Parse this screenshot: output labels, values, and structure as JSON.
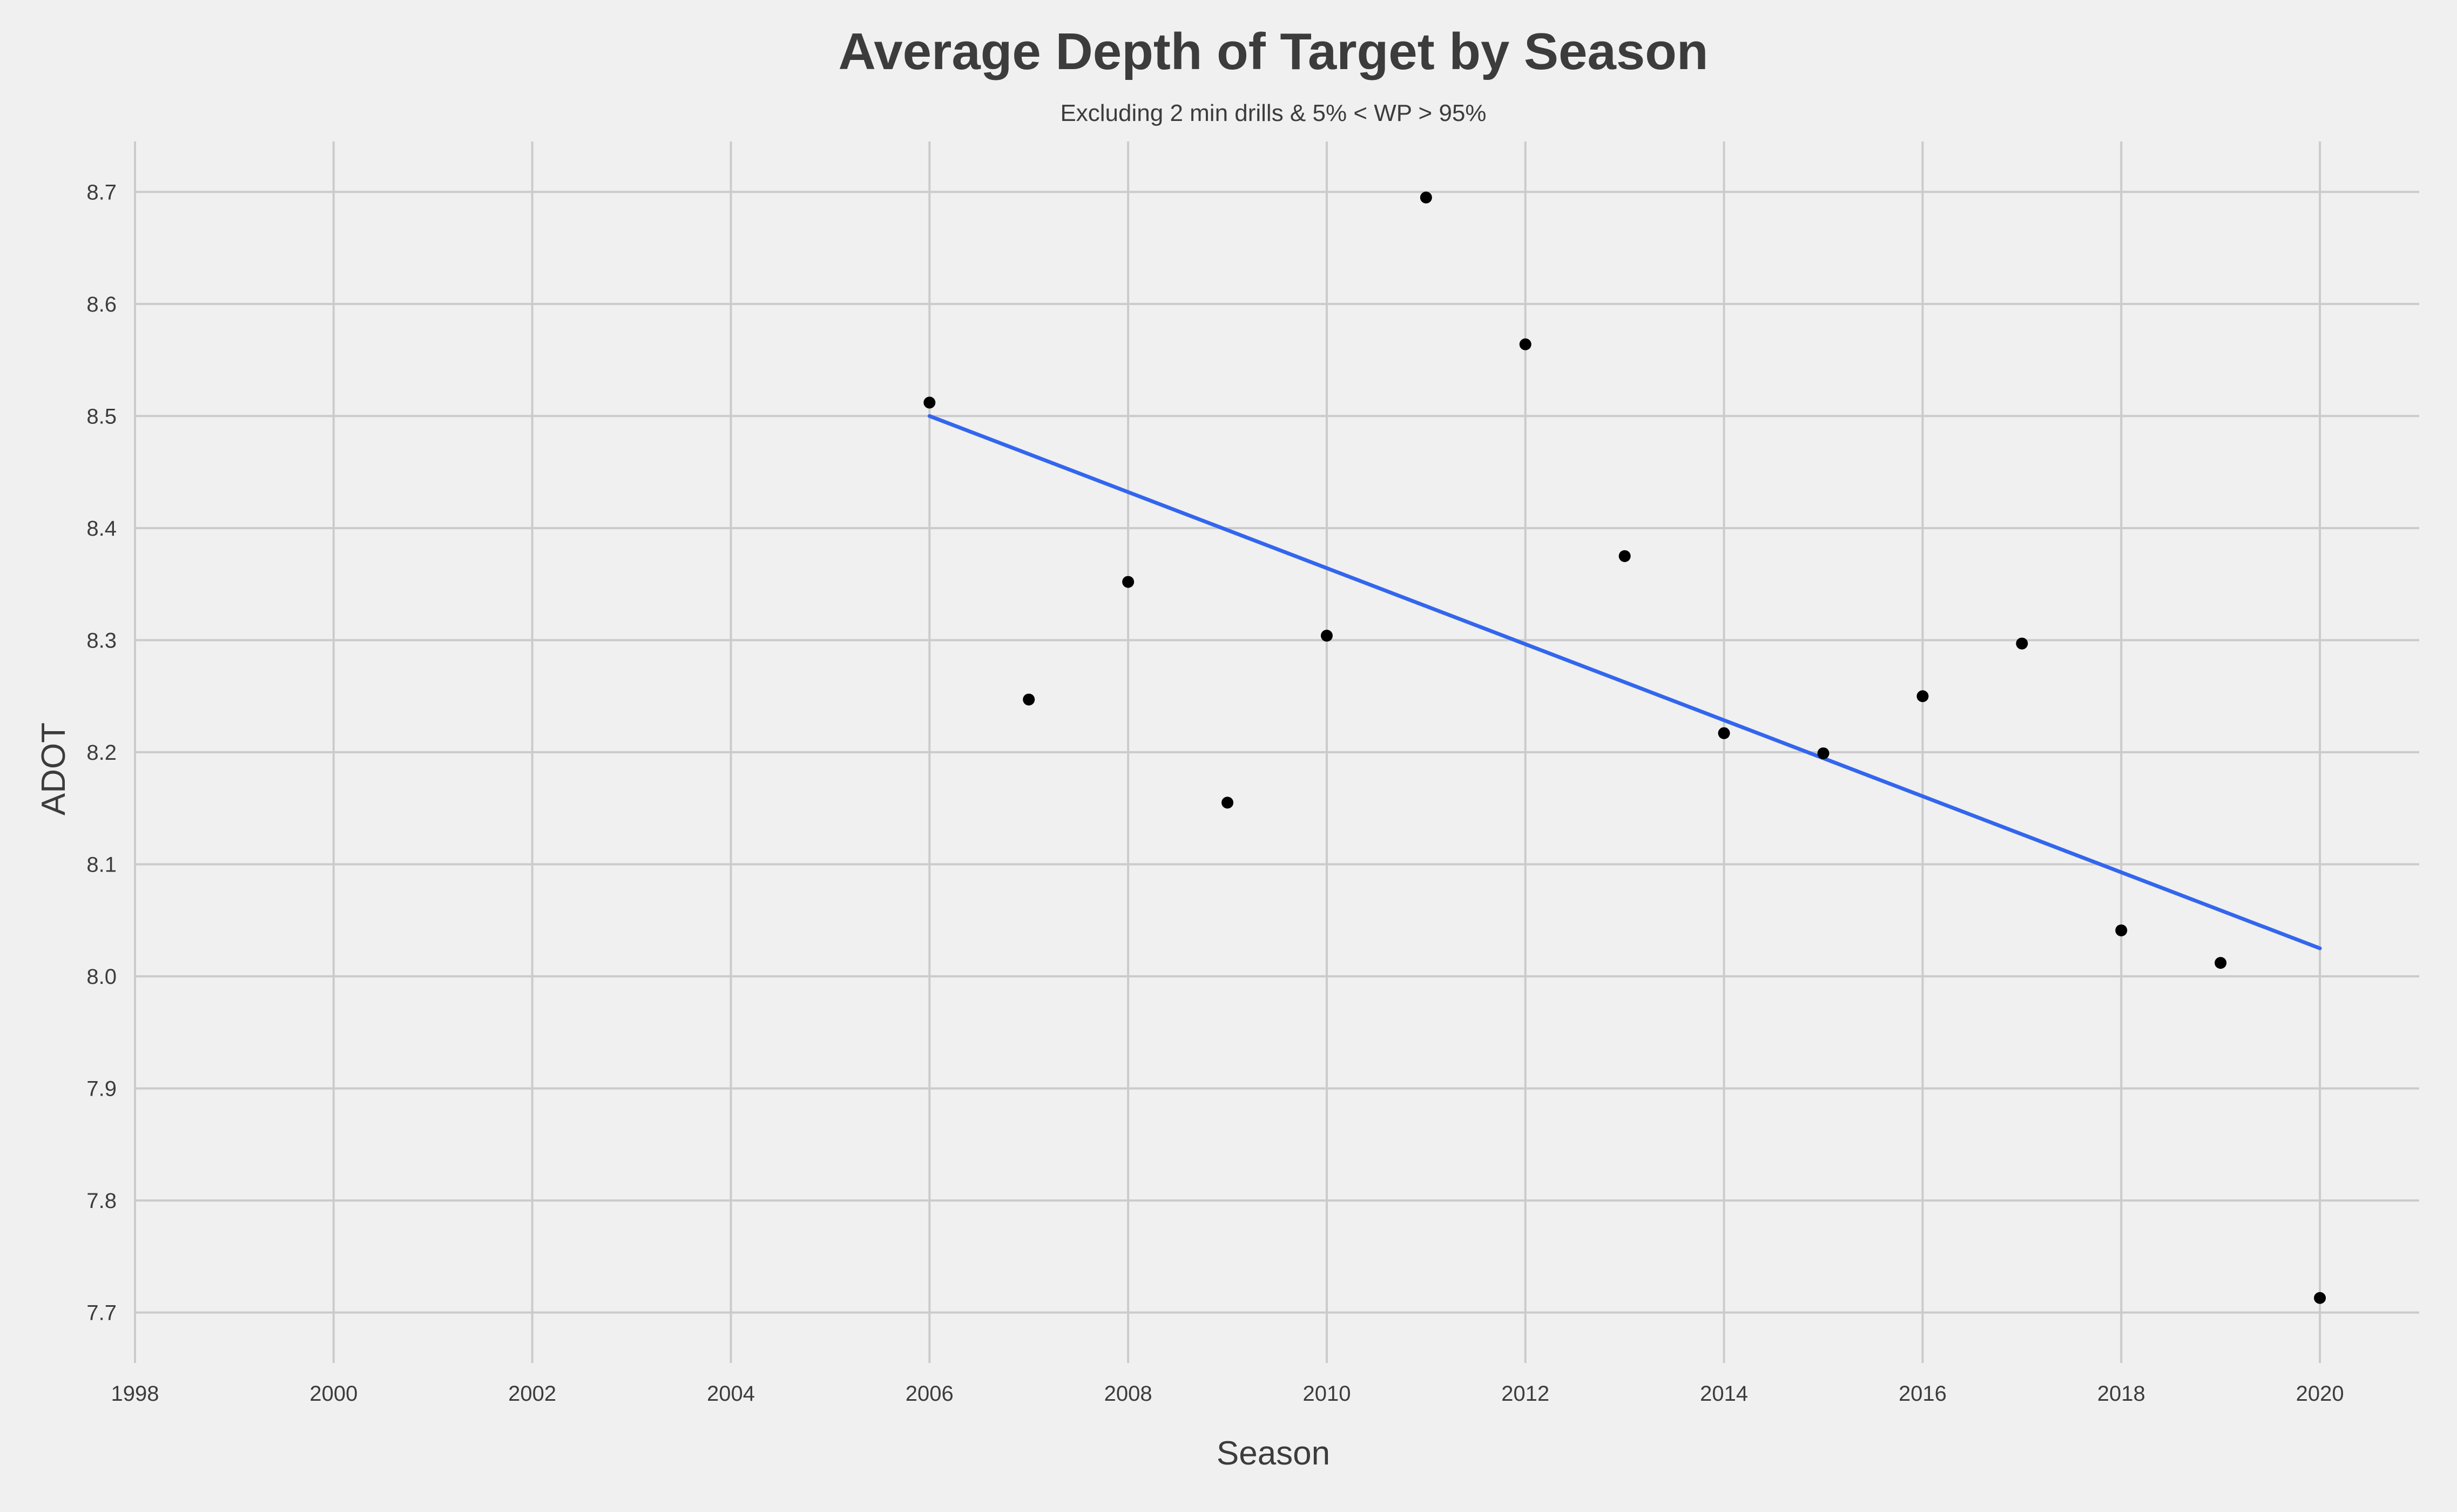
{
  "chart_data": {
    "type": "scatter",
    "title": "Average Depth of Target by Season",
    "subtitle": "Excluding 2 min drills & 5% < WP > 95%",
    "xlabel": "Season",
    "ylabel": "ADOT",
    "xlim": [
      1998,
      2021
    ],
    "ylim": [
      7.655,
      8.745
    ],
    "x_ticks": [
      1998,
      2000,
      2002,
      2004,
      2006,
      2008,
      2010,
      2012,
      2014,
      2016,
      2018,
      2020
    ],
    "y_ticks": [
      7.7,
      7.8,
      7.9,
      8.0,
      8.1,
      8.2,
      8.3,
      8.4,
      8.5,
      8.6,
      8.7
    ],
    "grid": true,
    "legend": "none",
    "series": [
      {
        "x": [
          2006,
          2007,
          2008,
          2009,
          2010,
          2011,
          2012,
          2013,
          2014,
          2015,
          2016,
          2017,
          2018,
          2019,
          2020
        ],
        "y": [
          8.512,
          8.247,
          8.352,
          8.155,
          8.304,
          8.695,
          8.564,
          8.375,
          8.217,
          8.199,
          8.25,
          8.297,
          8.041,
          8.012,
          7.713
        ],
        "color": "#000000"
      }
    ],
    "trendline": {
      "x": [
        2006,
        2020
      ],
      "y": [
        8.5,
        8.025
      ],
      "color": "#3366ee"
    }
  }
}
